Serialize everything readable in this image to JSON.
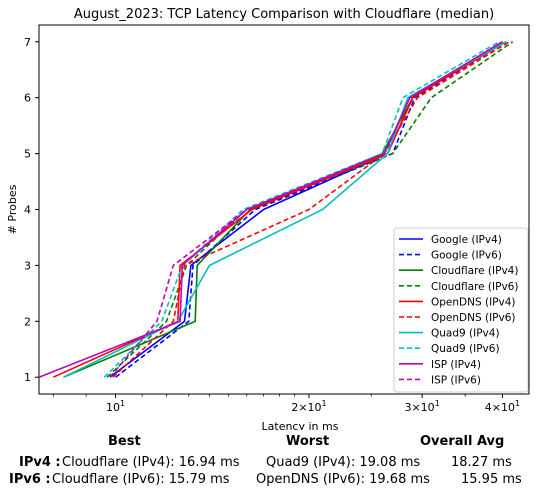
{
  "chart_data": {
    "type": "line",
    "title": "August_2023: TCP Latency Comparison with Cloudflare (median)",
    "xlabel": "Latency in ms",
    "ylabel": "# Probes",
    "xscale": "log",
    "xlim": [
      7.6,
      44
    ],
    "ylim": [
      0.7,
      7.3
    ],
    "x_ticks": [
      {
        "value": 10,
        "base": "10",
        "exp": "1"
      },
      {
        "value": 20,
        "base": "2×10",
        "exp": "1"
      },
      {
        "value": 30,
        "base": "3×10",
        "exp": "1"
      },
      {
        "value": 40,
        "base": "4×10",
        "exp": "1"
      }
    ],
    "y_ticks": [
      "1",
      "2",
      "3",
      "4",
      "5",
      "6",
      "7"
    ],
    "legend_position": "lower-right",
    "grid": false,
    "series": [
      {
        "name": "Google (IPv4)",
        "color": "#0000ff",
        "dash": "solid",
        "points": [
          [
            9.8,
            1
          ],
          [
            12.8,
            2
          ],
          [
            13.1,
            3
          ],
          [
            17,
            4
          ],
          [
            26.5,
            5
          ],
          [
            29,
            6
          ],
          [
            40,
            7
          ]
        ]
      },
      {
        "name": "Google (IPv6)",
        "color": "#0000ff",
        "dash": "dashed",
        "points": [
          [
            10,
            1
          ],
          [
            13,
            2
          ],
          [
            13.2,
            3
          ],
          [
            16.5,
            4
          ],
          [
            27,
            5
          ],
          [
            29.2,
            6
          ],
          [
            40.5,
            7
          ]
        ]
      },
      {
        "name": "Cloudflare (IPv4)",
        "color": "#008000",
        "dash": "solid",
        "points": [
          [
            8.3,
            1
          ],
          [
            13.3,
            2
          ],
          [
            13.4,
            3
          ],
          [
            16.2,
            4
          ],
          [
            26,
            5
          ],
          [
            29,
            6
          ],
          [
            40,
            7
          ]
        ]
      },
      {
        "name": "Cloudflare (IPv6)",
        "color": "#008000",
        "dash": "dashed",
        "points": [
          [
            9.7,
            1
          ],
          [
            12,
            2
          ],
          [
            12.9,
            3
          ],
          [
            16,
            4
          ],
          [
            27,
            5
          ],
          [
            31,
            6
          ],
          [
            41.5,
            7
          ]
        ]
      },
      {
        "name": "OpenDNS (IPv4)",
        "color": "#ff0000",
        "dash": "solid",
        "points": [
          [
            8,
            1
          ],
          [
            12.5,
            2
          ],
          [
            12.6,
            3
          ],
          [
            16.3,
            4
          ],
          [
            26.5,
            5
          ],
          [
            29,
            6
          ],
          [
            40.5,
            7
          ]
        ]
      },
      {
        "name": "OpenDNS (IPv6)",
        "color": "#ff0000",
        "dash": "dashed",
        "points": [
          [
            9.9,
            1
          ],
          [
            12.3,
            2
          ],
          [
            12.8,
            3
          ],
          [
            20,
            4
          ],
          [
            26.2,
            5
          ],
          [
            29.5,
            6
          ],
          [
            41,
            7
          ]
        ]
      },
      {
        "name": "Quad9 (IPv4)",
        "color": "#00bfbf",
        "dash": "solid",
        "points": [
          [
            8.3,
            1
          ],
          [
            12.5,
            2
          ],
          [
            14,
            3
          ],
          [
            21,
            4
          ],
          [
            26.5,
            5
          ],
          [
            28.5,
            6
          ],
          [
            40.5,
            7
          ]
        ]
      },
      {
        "name": "Quad9 (IPv6)",
        "color": "#00bfbf",
        "dash": "dashed",
        "points": [
          [
            9.6,
            1
          ],
          [
            11.8,
            2
          ],
          [
            12.7,
            3
          ],
          [
            15.8,
            4
          ],
          [
            26,
            5
          ],
          [
            28,
            6
          ],
          [
            39.5,
            7
          ]
        ]
      },
      {
        "name": "ISP (IPv4)",
        "color": "#bf00bf",
        "dash": "solid",
        "points": [
          [
            7.6,
            1
          ],
          [
            12.6,
            2
          ],
          [
            12.7,
            3
          ],
          [
            16,
            4
          ],
          [
            26.2,
            5
          ],
          [
            28.7,
            6
          ],
          [
            40,
            7
          ]
        ]
      },
      {
        "name": "ISP (IPv6)",
        "color": "#bf00bf",
        "dash": "dashed",
        "points": [
          [
            9.8,
            1
          ],
          [
            11.6,
            2
          ],
          [
            12.3,
            3
          ],
          [
            16,
            4
          ],
          [
            26.2,
            5
          ],
          [
            28.7,
            6
          ],
          [
            40,
            7
          ]
        ]
      }
    ]
  },
  "summary": {
    "headers": {
      "best": "Best",
      "worst": "Worst",
      "overall": "Overall Avg"
    },
    "rows": [
      {
        "label": "IPv4 :",
        "best": "Cloudflare (IPv4): 16.94 ms",
        "worst": "Quad9 (IPv4): 19.08 ms",
        "overall": "18.27 ms"
      },
      {
        "label": "IPv6 :",
        "best": "Cloudflare (IPv6): 15.79 ms",
        "worst": "OpenDNS (IPv6): 19.68 ms",
        "overall": "15.95 ms"
      }
    ]
  }
}
